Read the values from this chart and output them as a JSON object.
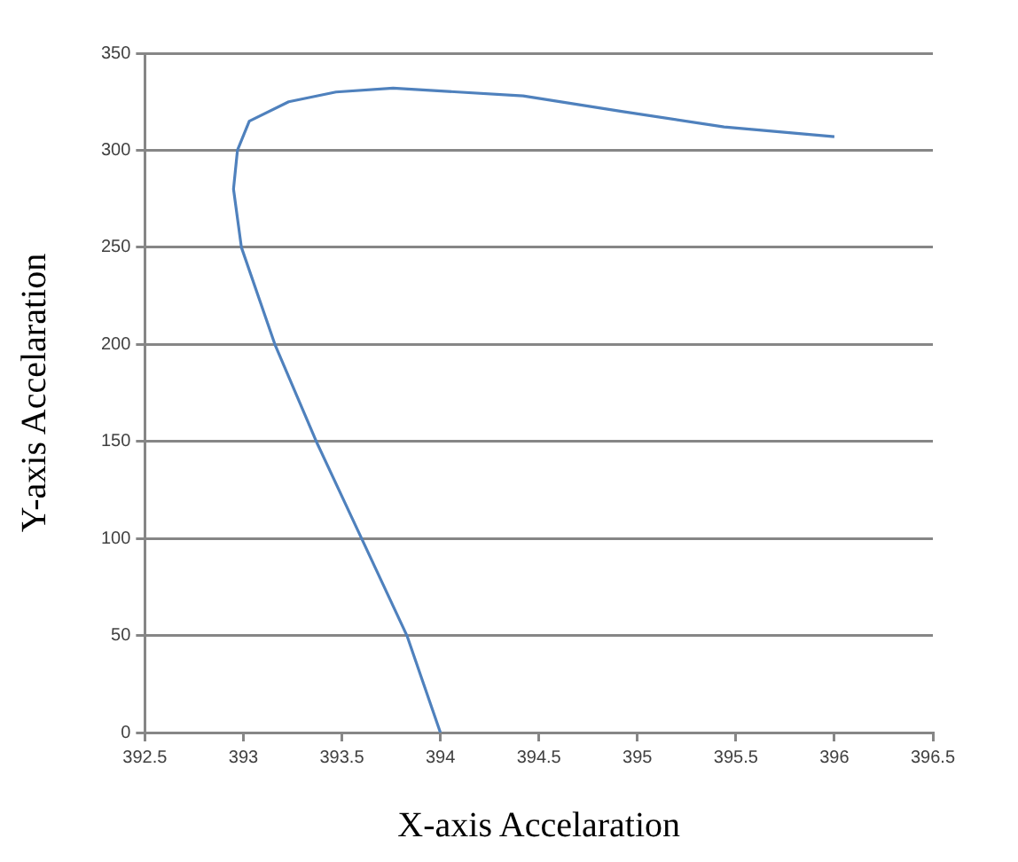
{
  "chart_data": {
    "type": "line",
    "xlabel": "X-axis Accelaration",
    "ylabel": "Y-axis Accelaration",
    "series": [
      {
        "color": "#4f81bd",
        "x": [
          394,
          393.83,
          393.6,
          393.37,
          393.16,
          392.99,
          392.95,
          392.97,
          393.03,
          393.23,
          393.47,
          393.76,
          394.42,
          394.92,
          395.44,
          396
        ],
        "values": [
          0,
          50,
          100,
          150,
          200,
          250,
          280,
          300,
          315,
          325,
          330,
          332,
          328,
          320,
          312,
          307
        ]
      }
    ],
    "xlim": [
      392.5,
      396.5
    ],
    "xticks": [
      392.5,
      393,
      393.5,
      394,
      394.5,
      395,
      395.5,
      396,
      396.5
    ],
    "ylim": [
      0,
      350
    ],
    "yticks": [
      0,
      50,
      100,
      150,
      200,
      250,
      300,
      350
    ],
    "grid": "y",
    "legend": false,
    "marker": "none",
    "line_style": "solid"
  }
}
